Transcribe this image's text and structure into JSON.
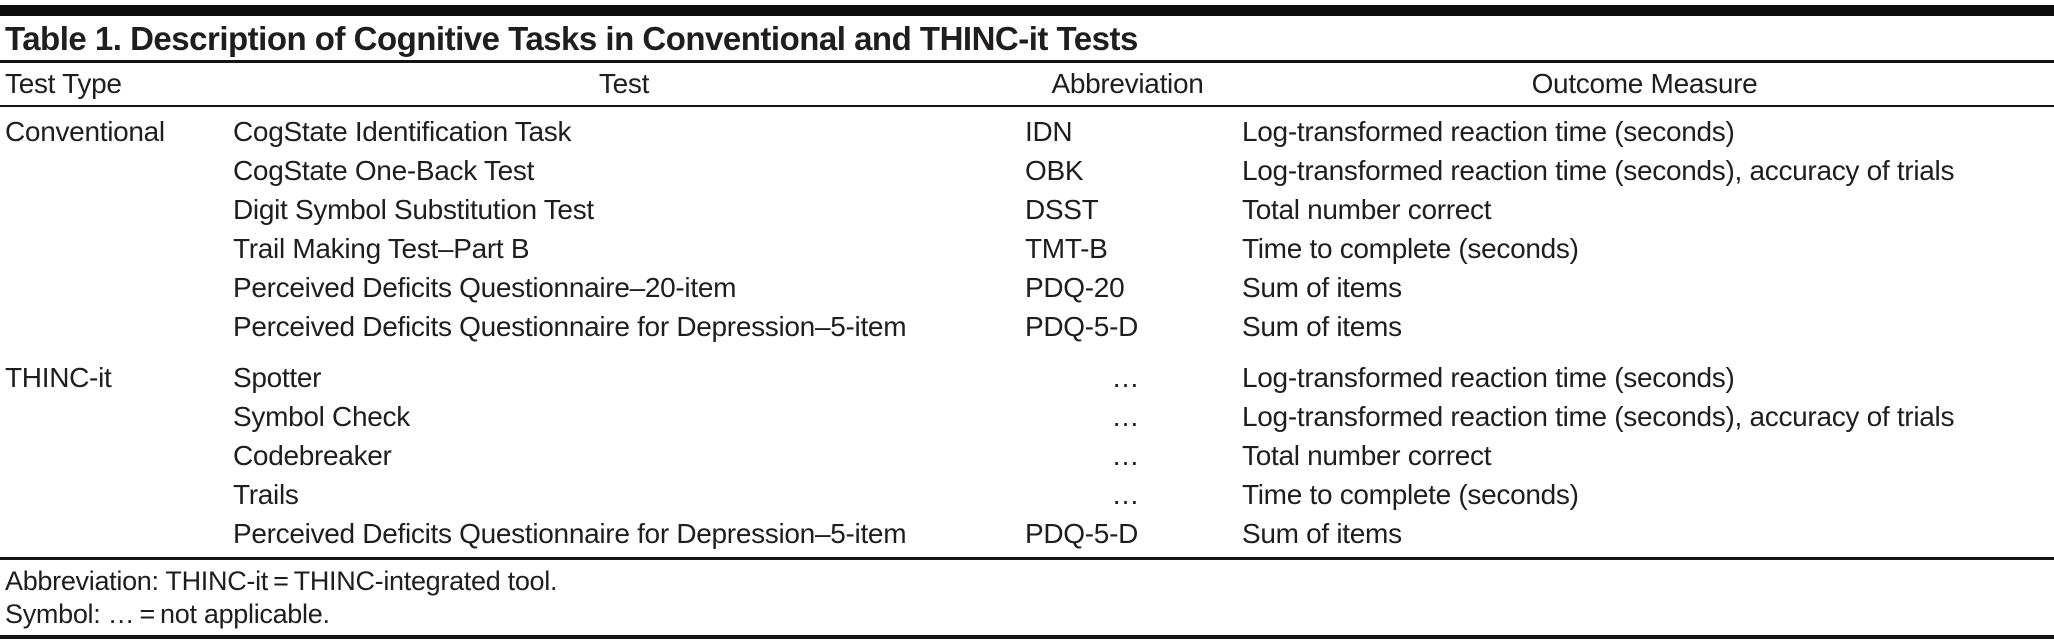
{
  "title": "Table 1. Description of Cognitive Tasks in Conventional and THINC-it Tests",
  "columns": [
    "Test Type",
    "Test",
    "Abbreviation",
    "Outcome Measure"
  ],
  "sections": [
    {
      "test_type": "Conventional",
      "rows": [
        {
          "test": "CogState Identification Task",
          "abbreviation": "IDN",
          "outcome": "Log-transformed reaction time (seconds)"
        },
        {
          "test": "CogState One-Back Test",
          "abbreviation": "OBK",
          "outcome": "Log-transformed reaction time (seconds), accuracy of trials"
        },
        {
          "test": "Digit Symbol Substitution Test",
          "abbreviation": "DSST",
          "outcome": "Total number correct"
        },
        {
          "test": "Trail Making Test–Part B",
          "abbreviation": "TMT-B",
          "outcome": "Time to complete (seconds)"
        },
        {
          "test": "Perceived Deficits Questionnaire–20-item",
          "abbreviation": "PDQ-20",
          "outcome": "Sum of items"
        },
        {
          "test": "Perceived Deficits Questionnaire for Depression–5-item",
          "abbreviation": "PDQ-5-D",
          "outcome": "Sum of items"
        }
      ]
    },
    {
      "test_type": "THINC-it",
      "rows": [
        {
          "test": "Spotter",
          "abbreviation": "…",
          "outcome": "Log-transformed reaction time (seconds)"
        },
        {
          "test": "Symbol Check",
          "abbreviation": "…",
          "outcome": "Log-transformed reaction time (seconds), accuracy of trials"
        },
        {
          "test": "Codebreaker",
          "abbreviation": "…",
          "outcome": "Total number correct"
        },
        {
          "test": "Trails",
          "abbreviation": "…",
          "outcome": "Time to complete (seconds)"
        },
        {
          "test": "Perceived Deficits Questionnaire for Depression–5-item",
          "abbreviation": "PDQ-5-D",
          "outcome": "Sum of items"
        }
      ]
    }
  ],
  "footnotes": [
    "Abbreviation: THINC-it = THINC-integrated tool.",
    "Symbol: … = not applicable."
  ]
}
